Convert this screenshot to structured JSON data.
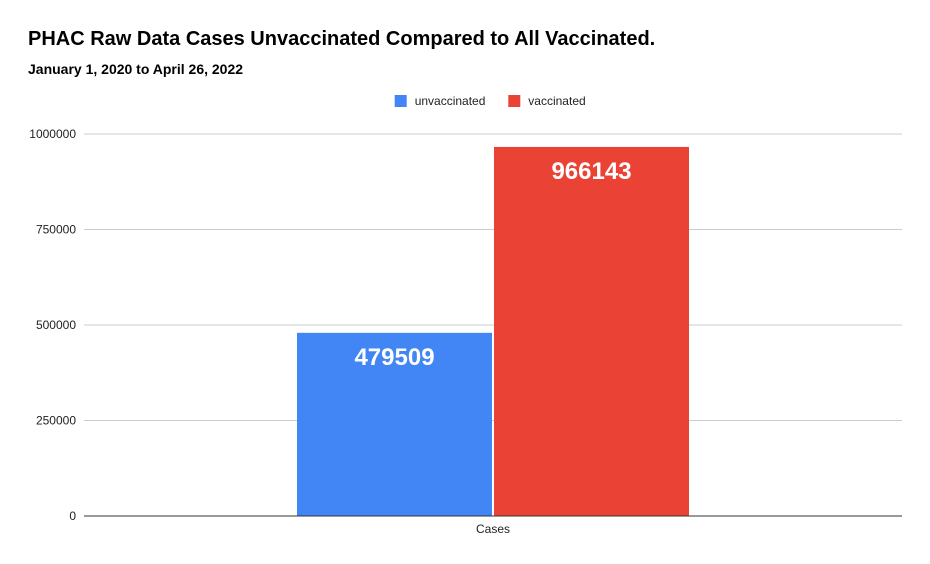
{
  "chart_data": {
    "type": "bar",
    "title": "PHAC Raw Data Cases Unvaccinated Compared to All Vaccinated.",
    "subtitle": "January 1, 2020 to April 26, 2022",
    "categories": [
      "Cases"
    ],
    "series": [
      {
        "name": "unvaccinated",
        "values": [
          479509
        ],
        "color": "#4285f4"
      },
      {
        "name": "vaccinated",
        "values": [
          966143
        ],
        "color": "#ea4335"
      }
    ],
    "ylim": [
      0,
      1000000
    ],
    "yticks": [
      "0",
      "250000",
      "500000",
      "750000",
      "1000000"
    ],
    "ytick_values": [
      0,
      250000,
      500000,
      750000,
      1000000
    ],
    "grid": true,
    "legend_position": "top-center",
    "xlabel": "",
    "ylabel": ""
  }
}
